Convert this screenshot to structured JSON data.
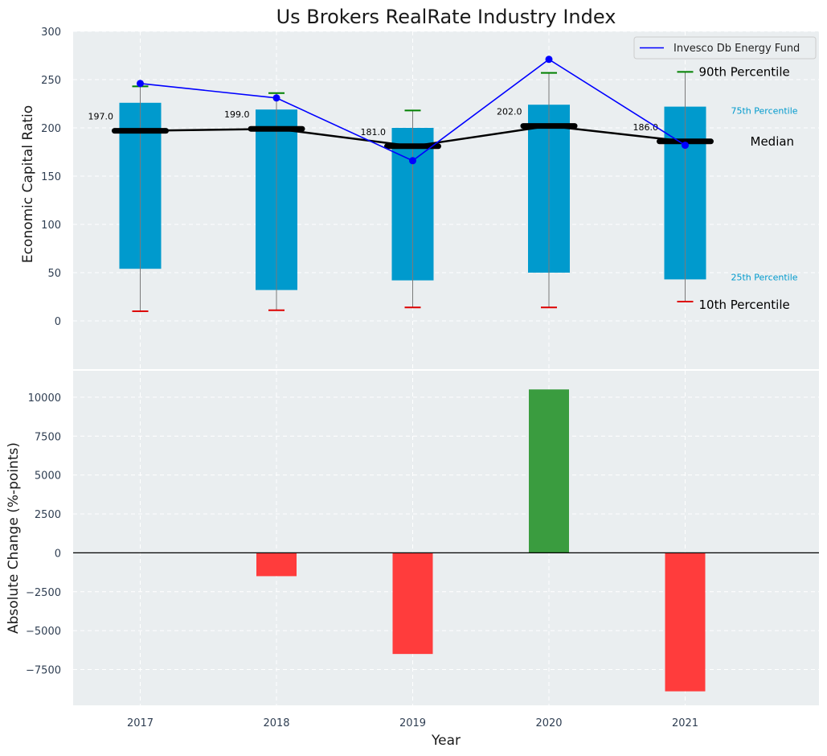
{
  "chart_data": {
    "title": "Us Brokers RealRate Industry Index",
    "xlabel": "Year",
    "categories": [
      "2017",
      "2018",
      "2019",
      "2020",
      "2021"
    ],
    "colors": {
      "bar": "#009ACD",
      "whisker_low": "#dd0000",
      "whisker_high": "#008000",
      "median_line": "#000000",
      "fund_line": "#0000ff",
      "positive_change": "#3a9c3f",
      "negative_change": "#ff3c3c",
      "panel_bg": "#eaeef0",
      "grid": "#ffffff"
    },
    "top_panel": {
      "type": "bar",
      "ylabel": "Economic Capital Ratio",
      "ylim": [
        -50,
        300
      ],
      "yticks": [
        0,
        50,
        100,
        150,
        200,
        250,
        300
      ],
      "grid": true,
      "p25": [
        54,
        32,
        42,
        50,
        43
      ],
      "p75": [
        226,
        219,
        200,
        224,
        222
      ],
      "p10": [
        10,
        11,
        14,
        14,
        20
      ],
      "p90": [
        243,
        236,
        218,
        257,
        258
      ],
      "median": [
        197.0,
        199.0,
        181.0,
        202.0,
        186.0
      ],
      "median_labels": [
        "197.0",
        "199.0",
        "181.0",
        "202.0",
        "186.0"
      ],
      "fund_name": "Invesco Db Energy Fund",
      "fund": [
        246,
        231,
        166,
        271,
        182
      ],
      "legend_position": "top-right",
      "annotations": {
        "p90": "90th Percentile",
        "p75": "75th Percentile",
        "median": "Median",
        "p25": "25th Percentile",
        "p10": "10th Percentile"
      }
    },
    "bottom_panel": {
      "type": "bar",
      "ylabel": "Absolute Change (%-points)",
      "ylim": [
        -9800,
        11700
      ],
      "yticks": [
        -7500,
        -5000,
        -2500,
        0,
        2500,
        5000,
        7500,
        10000
      ],
      "ytick_labels": [
        "−7500",
        "−5000",
        "−2500",
        "0",
        "2500",
        "5000",
        "7500",
        "10000"
      ],
      "grid": true,
      "values": [
        0,
        -1500,
        -6500,
        10500,
        -8900
      ]
    }
  }
}
